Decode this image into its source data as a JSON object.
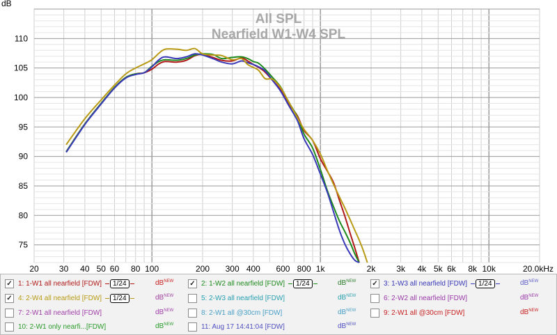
{
  "chart_data": {
    "type": "line",
    "title": "All SPL",
    "subtitle": "Nearfield W1-W4 SPL",
    "ylabel": "dB",
    "xscale": "log",
    "xlim": [
      20,
      20000
    ],
    "ylim": [
      72,
      115
    ],
    "x_ticks": [
      {
        "v": 20,
        "label": "20"
      },
      {
        "v": 30,
        "label": "30"
      },
      {
        "v": 40,
        "label": "40"
      },
      {
        "v": 50,
        "label": "50"
      },
      {
        "v": 60,
        "label": "60"
      },
      {
        "v": 80,
        "label": "80"
      },
      {
        "v": 100,
        "label": "100"
      },
      {
        "v": 200,
        "label": "200"
      },
      {
        "v": 300,
        "label": "300"
      },
      {
        "v": 400,
        "label": "400"
      },
      {
        "v": 600,
        "label": "600"
      },
      {
        "v": 800,
        "label": "800"
      },
      {
        "v": 1000,
        "label": "1k"
      },
      {
        "v": 2000,
        "label": "2k"
      },
      {
        "v": 3000,
        "label": "3k"
      },
      {
        "v": 4000,
        "label": "4k"
      },
      {
        "v": 5000,
        "label": "5k"
      },
      {
        "v": 6000,
        "label": "6k"
      },
      {
        "v": 8000,
        "label": "8k"
      },
      {
        "v": 10000,
        "label": "10k"
      },
      {
        "v": 20000,
        "label": "20.0kHz"
      }
    ],
    "y_ticks": [
      75,
      80,
      85,
      90,
      95,
      100,
      105,
      110
    ],
    "grid": true,
    "series": [
      {
        "name": "1: 1-W1 all nearfield [FDW]",
        "color": "#b01818",
        "x": [
          31,
          40,
          50,
          60,
          70,
          80,
          90,
          100,
          110,
          120,
          140,
          160,
          180,
          200,
          230,
          260,
          300,
          340,
          370,
          400,
          430,
          470,
          520,
          580,
          650,
          730,
          800,
          900,
          1000,
          1100,
          1200,
          1300,
          1400,
          1500,
          1600,
          1700
        ],
        "y": [
          90.8,
          95.5,
          99,
          101.7,
          103.4,
          104,
          104.2,
          104.8,
          105.7,
          106.1,
          106,
          106.3,
          107.1,
          107.3,
          106.8,
          106.3,
          106.2,
          106.7,
          106.2,
          105.6,
          105.1,
          104.3,
          102.9,
          101.3,
          98.9,
          96.9,
          94.4,
          92.7,
          89.6,
          87.5,
          85.5,
          82.5,
          79.8,
          77,
          74.5,
          72
        ]
      },
      {
        "name": "2: 1-W2 all nearfield [FDW]",
        "color": "#1e8a1e",
        "x": [
          31,
          40,
          50,
          60,
          70,
          80,
          90,
          100,
          110,
          120,
          140,
          160,
          180,
          200,
          230,
          260,
          300,
          340,
          370,
          400,
          430,
          470,
          520,
          580,
          650,
          730,
          800,
          900,
          1000,
          1100,
          1200,
          1300,
          1400,
          1500,
          1600,
          1700
        ],
        "y": [
          90.8,
          95.5,
          99,
          101.7,
          103.4,
          104,
          104.2,
          105.3,
          106.1,
          106.4,
          106.3,
          106.6,
          107.2,
          107.4,
          107.3,
          106.6,
          106.8,
          106.9,
          106.6,
          106.1,
          105.8,
          104.8,
          103.4,
          101.8,
          99.2,
          96.7,
          93.8,
          91.4,
          87.8,
          84.2,
          81.4,
          79,
          77.2,
          75.4,
          73.5,
          72
        ]
      },
      {
        "name": "3: 1-W3 all nearfield [FDW]",
        "color": "#3838b8",
        "x": [
          31,
          40,
          50,
          60,
          70,
          80,
          90,
          100,
          110,
          120,
          140,
          160,
          180,
          200,
          230,
          260,
          300,
          340,
          370,
          400,
          430,
          470,
          520,
          580,
          650,
          730,
          800,
          900,
          1000,
          1100,
          1200,
          1300,
          1400,
          1500,
          1600,
          1700
        ],
        "y": [
          90.7,
          95.4,
          98.9,
          101.6,
          103.3,
          103.9,
          104.2,
          105.2,
          106.4,
          106.9,
          106.6,
          106.9,
          107.4,
          107.2,
          106.6,
          106,
          105.7,
          106.2,
          105.9,
          105.6,
          105.2,
          104.5,
          102.9,
          101.1,
          98.6,
          96.1,
          93,
          90.3,
          87,
          83.9,
          80.5,
          77.4,
          75.1,
          73.5,
          72.4,
          72
        ]
      },
      {
        "name": "4: 2-W4 all nearfield [FDW]",
        "color": "#b89a14",
        "x": [
          31,
          40,
          50,
          60,
          70,
          80,
          90,
          100,
          110,
          120,
          140,
          160,
          180,
          200,
          230,
          260,
          300,
          340,
          370,
          400,
          430,
          470,
          520,
          580,
          650,
          730,
          800,
          900,
          1000,
          1100,
          1200,
          1300,
          1400,
          1500,
          1600,
          1700,
          1800,
          1900
        ],
        "y": [
          92,
          96.4,
          99.6,
          102.1,
          104,
          105,
          105.7,
          106.4,
          107.5,
          108.2,
          108.2,
          108,
          108.3,
          107.4,
          107.2,
          107.1,
          106.4,
          106.6,
          105.6,
          105.1,
          104.6,
          103.2,
          103.1,
          101.7,
          99.2,
          96.6,
          94.6,
          92.7,
          90.4,
          87.6,
          85.2,
          83.1,
          81.2,
          79.3,
          77.5,
          75.8,
          74,
          72
        ]
      }
    ],
    "legend": [
      {
        "label": "1: 1-W1 all nearfield [FDW]",
        "color": "#b01818",
        "checked": true,
        "smoothing": "1/24",
        "unit": "dB",
        "unit_sup": "NEW",
        "unit_color": "#c82020"
      },
      {
        "label": "2: 1-W2 all nearfield [FDW]",
        "color": "#1e8a1e",
        "checked": true,
        "smoothing": "1/24",
        "unit": "dB",
        "unit_sup": "NEW",
        "unit_color": "#2a7e2a"
      },
      {
        "label": "3: 1-W3 all nearfield [FDW]",
        "color": "#3838b8",
        "checked": true,
        "smoothing": "1/24",
        "unit": "dB",
        "unit_sup": "NEW",
        "unit_color": "#6060c8"
      },
      {
        "label": "4: 2-W4 all nearfield [FDW]",
        "color": "#b89a14",
        "checked": true,
        "smoothing": "1/24",
        "unit": "dB",
        "unit_sup": "NEW",
        "unit_color": "#a040a0"
      },
      {
        "label": "5: 2-W3 all nearfield [FDW]",
        "color": "#2aa0b0",
        "checked": false,
        "smoothing": "",
        "unit": "dB",
        "unit_sup": "NEW",
        "unit_color": "#2aa0b0"
      },
      {
        "label": "6: 2-W2 all nearfield [FDW]",
        "color": "#9a3aa8",
        "checked": false,
        "smoothing": "",
        "unit": "dB",
        "unit_sup": "NEW",
        "unit_color": "#9a3aa8"
      },
      {
        "label": "7: 2-W1 all nearfield [FDW]",
        "color": "#a040a8",
        "checked": false,
        "smoothing": "",
        "unit": "dB",
        "unit_sup": "NEW",
        "unit_color": "#a040a8"
      },
      {
        "label": "8: 2-W1 all @30cm [FDW]",
        "color": "#4aa0c8",
        "checked": false,
        "smoothing": "",
        "unit": "dB",
        "unit_sup": "NEW",
        "unit_color": "#4aa0c8"
      },
      {
        "label": "9: 2-W1 all @30cm [FDW]",
        "color": "#c82020",
        "checked": false,
        "smoothing": "",
        "unit": "dB",
        "unit_sup": "NEW",
        "unit_color": "#c82020"
      },
      {
        "label": "10: 2-W1 only nearfi...[FDW]",
        "color": "#2a9a2a",
        "checked": false,
        "smoothing": "",
        "unit": "dB",
        "unit_sup": "NEW",
        "unit_color": "#2a9a2a"
      },
      {
        "label": "11: Aug 17 14:41:04 [FDW]",
        "color": "#5050c0",
        "checked": false,
        "smoothing": "",
        "unit": "dB",
        "unit_sup": "NEW",
        "unit_color": "#5050c0"
      }
    ]
  }
}
